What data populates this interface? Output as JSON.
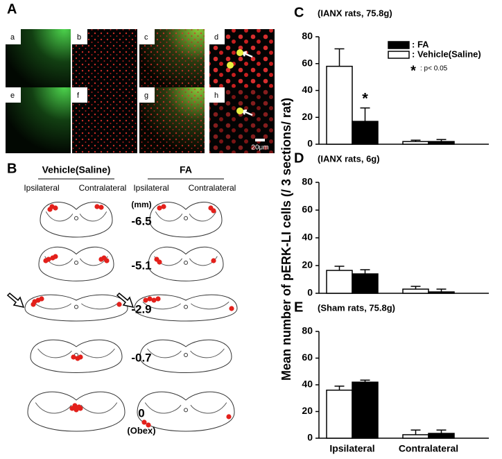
{
  "panels": {
    "A": {
      "label": "A",
      "images": [
        "a",
        "b",
        "c",
        "d",
        "e",
        "f",
        "g",
        "h"
      ],
      "scale_bar": "20μm"
    },
    "B": {
      "label": "B",
      "groups": [
        "Vehicle(Saline)",
        "FA"
      ],
      "sides": [
        "Ipsilateral",
        "Contralateral"
      ],
      "unit": "(mm)",
      "levels": [
        "-6.5",
        "-5.1",
        "-2.9",
        "-0.7",
        "0"
      ],
      "level_note": "(Obex)"
    }
  },
  "shared_ylabel": "Mean number of pERK-LI cells (/ 3 sections/ rat)",
  "chart_data": [
    {
      "type": "bar",
      "panel": "C",
      "subtitle": "(IANX rats, 75.8g)",
      "categories": [
        null,
        null
      ],
      "series": [
        {
          "name": ": Vehicle(Saline)",
          "color": "#ffffff",
          "values": [
            58,
            2
          ],
          "errors": [
            13,
            1
          ]
        },
        {
          "name": ": FA",
          "color": "#000000",
          "values": [
            17,
            2
          ],
          "errors": [
            10,
            1.5
          ]
        }
      ],
      "ylim": [
        0,
        80
      ],
      "yticks": [
        0,
        20,
        40,
        60,
        80
      ],
      "legend": "top-right",
      "significance_marker": "*",
      "significance_note": ": p< 0.05"
    },
    {
      "type": "bar",
      "panel": "D",
      "subtitle": "(IANX rats, 6g)",
      "categories": [
        null,
        null
      ],
      "series": [
        {
          "color": "#ffffff",
          "values": [
            16.5,
            3
          ],
          "errors": [
            3,
            2
          ]
        },
        {
          "color": "#000000",
          "values": [
            14,
            1
          ],
          "errors": [
            3,
            2
          ]
        }
      ],
      "ylim": [
        0,
        80
      ],
      "yticks": [
        0,
        20,
        40,
        60,
        80
      ]
    },
    {
      "type": "bar",
      "panel": "E",
      "subtitle": "(Sham rats, 75.8g)",
      "categories": [
        "Ipsilateral",
        "Contralateral"
      ],
      "series": [
        {
          "color": "#ffffff",
          "values": [
            36,
            2.6
          ],
          "errors": [
            3,
            3.5
          ]
        },
        {
          "color": "#000000",
          "values": [
            42,
            3.6
          ],
          "errors": [
            1.5,
            2.5
          ]
        }
      ],
      "ylim": [
        0,
        80
      ],
      "yticks": [
        0,
        20,
        40,
        60,
        80
      ]
    }
  ]
}
